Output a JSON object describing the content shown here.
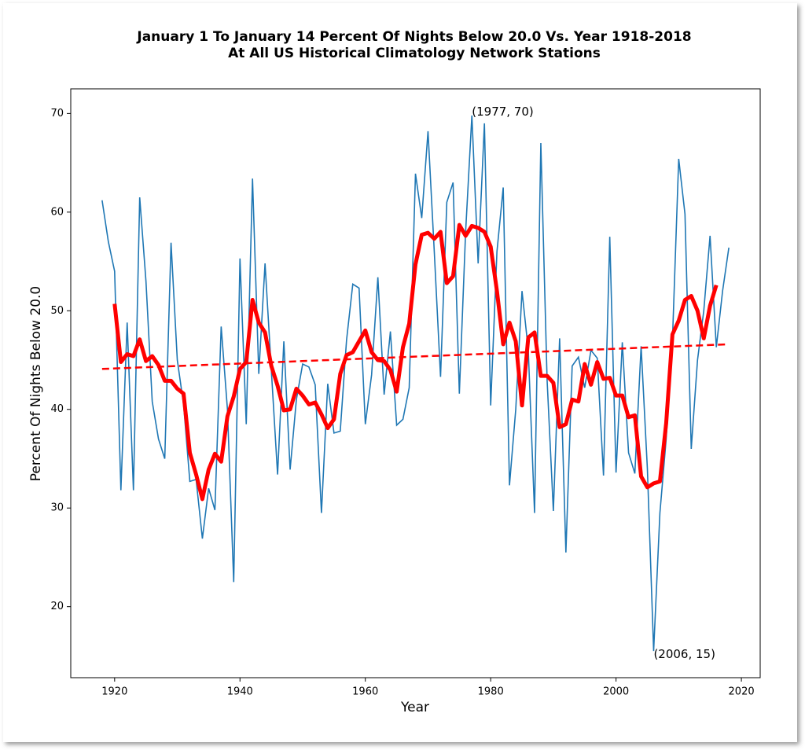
{
  "chart_data": {
    "type": "line",
    "title": [
      "January 1 To January 14 Percent Of Nights Below 20.0 Vs. Year 1918-2018",
      "At All US Historical Climatology Network Stations"
    ],
    "xlabel": "Year",
    "ylabel": "Percent Of Nights Below 20.0",
    "xlim": [
      1913,
      2023
    ],
    "ylim": [
      12.8,
      72.5
    ],
    "xticks": [
      1920,
      1940,
      1960,
      1980,
      2000,
      2020
    ],
    "yticks": [
      20,
      30,
      40,
      50,
      60,
      70
    ],
    "series": [
      {
        "color": "#1f77b4",
        "linestyle": "solid",
        "x": [
          1918,
          1919,
          1920,
          1921,
          1922,
          1923,
          1924,
          1925,
          1926,
          1927,
          1928,
          1929,
          1930,
          1931,
          1932,
          1933,
          1934,
          1935,
          1936,
          1937,
          1938,
          1939,
          1940,
          1941,
          1942,
          1943,
          1944,
          1945,
          1946,
          1947,
          1948,
          1949,
          1950,
          1951,
          1952,
          1953,
          1954,
          1955,
          1956,
          1957,
          1958,
          1959,
          1960,
          1961,
          1962,
          1963,
          1964,
          1965,
          1966,
          1967,
          1968,
          1969,
          1970,
          1971,
          1972,
          1973,
          1974,
          1975,
          1976,
          1977,
          1978,
          1979,
          1980,
          1981,
          1982,
          1983,
          1984,
          1985,
          1986,
          1987,
          1988,
          1989,
          1990,
          1991,
          1992,
          1993,
          1994,
          1995,
          1996,
          1997,
          1998,
          1999,
          2000,
          2001,
          2002,
          2003,
          2004,
          2005,
          2006,
          2007,
          2008,
          2009,
          2010,
          2011,
          2012,
          2013,
          2014,
          2015,
          2016,
          2017,
          2018
        ],
        "values": [
          61.2,
          57,
          54,
          31.8,
          48.8,
          31.8,
          61.5,
          53,
          40.8,
          37,
          35,
          56.9,
          45,
          40.5,
          32.7,
          32.9,
          26.9,
          32,
          29.8,
          48.4,
          40,
          22.5,
          55.3,
          38.5,
          63.4,
          43.6,
          54.8,
          44,
          33.4,
          46.9,
          33.9,
          41,
          44.6,
          44.3,
          42.5,
          29.5,
          42.6,
          37.6,
          37.8,
          47,
          52.7,
          52.3,
          38.5,
          43.5,
          53.4,
          41.5,
          47.9,
          38.4,
          39,
          42.2,
          63.9,
          59.4,
          68.2,
          56,
          43.3,
          61,
          63,
          41.6,
          58,
          69.8,
          54.8,
          69,
          40.4,
          56,
          62.5,
          32.3,
          40,
          52,
          46,
          29.5,
          67,
          43,
          29.7,
          47.2,
          25.5,
          44.4,
          45.3,
          42.2,
          46,
          45.2,
          33.3,
          57.5,
          33.6,
          46.8,
          35.6,
          33.5,
          46.4,
          34,
          15.5,
          29.5,
          37,
          47,
          65.4,
          59.8,
          36,
          45,
          50,
          57.6,
          46.3,
          52,
          56.4
        ]
      },
      {
        "color": "#ff0000",
        "linestyle": "solid",
        "x": [
          1920,
          1921,
          1922,
          1923,
          1924,
          1925,
          1926,
          1927,
          1928,
          1929,
          1930,
          1931,
          1932,
          1933,
          1934,
          1935,
          1936,
          1937,
          1938,
          1939,
          1940,
          1941,
          1942,
          1943,
          1944,
          1945,
          1946,
          1947,
          1948,
          1949,
          1950,
          1951,
          1952,
          1953,
          1954,
          1955,
          1956,
          1957,
          1958,
          1959,
          1960,
          1961,
          1962,
          1963,
          1964,
          1965,
          1966,
          1967,
          1968,
          1969,
          1970,
          1971,
          1972,
          1973,
          1974,
          1975,
          1976,
          1977,
          1978,
          1979,
          1980,
          1981,
          1982,
          1983,
          1984,
          1985,
          1986,
          1987,
          1988,
          1989,
          1990,
          1991,
          1992,
          1993,
          1994,
          1995,
          1996,
          1997,
          1998,
          1999,
          2000,
          2001,
          2002,
          2003,
          2004,
          2005,
          2006,
          2007,
          2008,
          2009,
          2010,
          2011,
          2012,
          2013,
          2014,
          2015,
          2016
        ],
        "values": [
          50.7,
          44.8,
          45.6,
          45.4,
          47.1,
          44.9,
          45.4,
          44.5,
          42.9,
          42.9,
          42.1,
          41.6,
          35.6,
          33.4,
          30.9,
          33.9,
          35.5,
          34.7,
          39.3,
          41.3,
          44.1,
          44.8,
          51.1,
          48.8,
          47.8,
          44.4,
          42.4,
          39.9,
          40,
          42.1,
          41.4,
          40.5,
          40.7,
          39.5,
          38.1,
          39,
          43.6,
          45.5,
          45.8,
          46.9,
          48,
          45.8,
          45,
          44.9,
          44,
          41.8,
          46.3,
          48.7,
          54.7,
          57.7,
          57.9,
          57.3,
          58,
          52.8,
          53.5,
          58.7,
          57.6,
          58.6,
          58.4,
          58,
          56.5,
          52,
          46.6,
          48.8,
          46.9,
          40.4,
          47.3,
          47.8,
          43.4,
          43.4,
          42.7,
          38.2,
          38.5,
          41,
          40.8,
          44.6,
          42.5,
          44.8,
          43.1,
          43.2,
          41.4,
          41.4,
          39.2,
          39.4,
          33.2,
          32.1,
          32.5,
          32.7,
          38.6,
          47.6,
          49,
          51.1,
          51.5,
          50,
          47.2,
          50.5,
          52.6
        ]
      },
      {
        "color": "#ff0000",
        "linestyle": "dashed",
        "x": [
          1918,
          2018
        ],
        "values": [
          44.1,
          46.6
        ]
      }
    ],
    "annotations": [
      {
        "text": "(1977, 70)",
        "x": 1977,
        "y": 70
      },
      {
        "text": "(2006, 15)",
        "x": 2006,
        "y": 15
      }
    ]
  }
}
